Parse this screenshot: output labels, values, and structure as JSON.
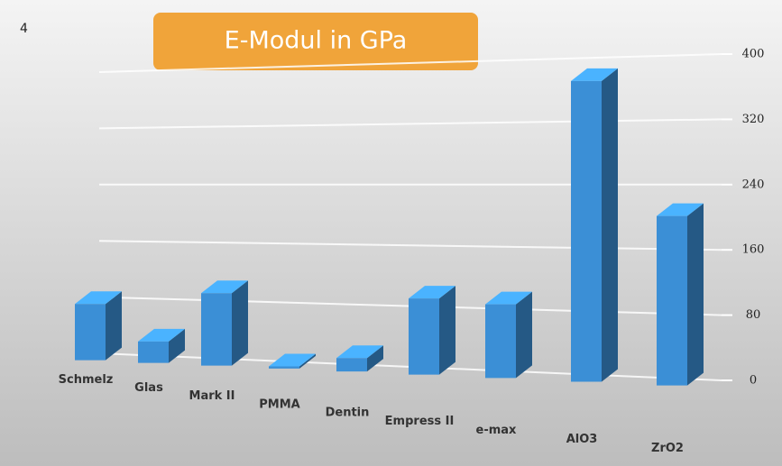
{
  "slide_number": "4",
  "chart_data": {
    "type": "bar3d",
    "title": "E-Modul in GPa",
    "categories": [
      "Schmelz",
      "Glas",
      "Mark II",
      "PMMA",
      "Dentin",
      "Empress II",
      "e-max",
      "AlO3",
      "ZrO2"
    ],
    "values": [
      80,
      30,
      100,
      3,
      18,
      100,
      95,
      380,
      210
    ],
    "color": "#3b8fd6",
    "ylim": [
      0,
      400
    ],
    "yticks": [
      0,
      80,
      160,
      240,
      320,
      400
    ],
    "grid": true
  }
}
